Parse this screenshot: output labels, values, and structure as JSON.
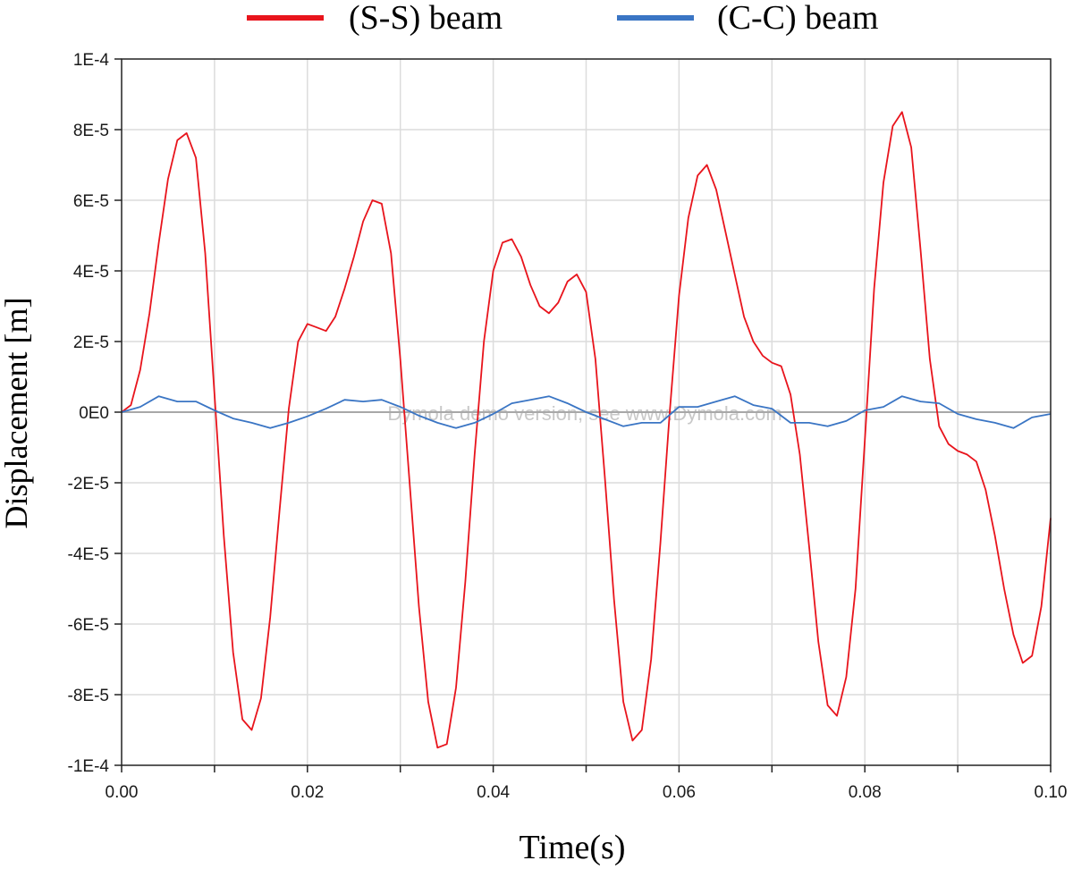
{
  "chart_data": {
    "type": "line",
    "xlabel": "Time(s)",
    "ylabel": "Displacement [m]",
    "xlim": [
      0,
      0.1
    ],
    "ylim": [
      -0.0001,
      0.0001
    ],
    "x_ticks": [
      0,
      0.01,
      0.02,
      0.03,
      0.04,
      0.05,
      0.06,
      0.07,
      0.08,
      0.09,
      0.1
    ],
    "x_tick_labels": [
      "0.00",
      "",
      "0.02",
      "",
      "0.04",
      "",
      "0.06",
      "",
      "0.08",
      "",
      "0.10"
    ],
    "y_ticks": [
      0.0001,
      8e-05,
      6e-05,
      4e-05,
      2e-05,
      0,
      -2e-05,
      -4e-05,
      -6e-05,
      -8e-05,
      -0.0001
    ],
    "y_tick_labels": [
      "1E-4",
      "8E-5",
      "6E-5",
      "4E-5",
      "2E-5",
      "0E0",
      "-2E-5",
      "-4E-5",
      "-6E-5",
      "-8E-5",
      "-1E-4"
    ],
    "grid": true,
    "legend_position": "top-center",
    "watermark": "Dymola demo version, see www.Dymola.com",
    "series": [
      {
        "name": "(S-S) beam",
        "color": "#e8141c",
        "x": [
          0,
          0.001,
          0.002,
          0.003,
          0.004,
          0.005,
          0.006,
          0.007,
          0.008,
          0.009,
          0.01,
          0.011,
          0.012,
          0.013,
          0.014,
          0.015,
          0.016,
          0.017,
          0.018,
          0.019,
          0.02,
          0.021,
          0.022,
          0.023,
          0.024,
          0.025,
          0.026,
          0.027,
          0.028,
          0.029,
          0.03,
          0.031,
          0.032,
          0.033,
          0.034,
          0.035,
          0.036,
          0.037,
          0.038,
          0.039,
          0.04,
          0.041,
          0.042,
          0.043,
          0.044,
          0.045,
          0.046,
          0.047,
          0.048,
          0.049,
          0.05,
          0.051,
          0.052,
          0.053,
          0.054,
          0.055,
          0.056,
          0.057,
          0.058,
          0.059,
          0.06,
          0.061,
          0.062,
          0.063,
          0.064,
          0.065,
          0.066,
          0.067,
          0.068,
          0.069,
          0.07,
          0.071,
          0.072,
          0.073,
          0.074,
          0.075,
          0.076,
          0.077,
          0.078,
          0.079,
          0.08,
          0.081,
          0.082,
          0.083,
          0.084,
          0.085,
          0.086,
          0.087,
          0.088,
          0.089,
          0.09,
          0.091,
          0.092,
          0.093,
          0.094,
          0.095,
          0.096,
          0.097,
          0.098,
          0.099,
          0.1
        ],
        "y": [
          0,
          2e-06,
          1.2e-05,
          2.8e-05,
          4.8e-05,
          6.6e-05,
          7.7e-05,
          7.9e-05,
          7.2e-05,
          4.5e-05,
          5e-06,
          -3.5e-05,
          -6.8e-05,
          -8.7e-05,
          -9e-05,
          -8.1e-05,
          -5.8e-05,
          -2.8e-05,
          1e-06,
          2e-05,
          2.5e-05,
          2.4e-05,
          2.3e-05,
          2.7e-05,
          3.5e-05,
          4.4e-05,
          5.4e-05,
          6e-05,
          5.9e-05,
          4.5e-05,
          1.5e-05,
          -2e-05,
          -5.5e-05,
          -8.2e-05,
          -9.5e-05,
          -9.4e-05,
          -7.8e-05,
          -4.8e-05,
          -1.2e-05,
          2e-05,
          4e-05,
          4.8e-05,
          4.9e-05,
          4.4e-05,
          3.6e-05,
          3e-05,
          2.8e-05,
          3.1e-05,
          3.7e-05,
          3.9e-05,
          3.4e-05,
          1.5e-05,
          -1.8e-05,
          -5.3e-05,
          -8.2e-05,
          -9.3e-05,
          -9e-05,
          -7e-05,
          -3.7e-05,
          0,
          3.3e-05,
          5.5e-05,
          6.7e-05,
          7e-05,
          6.3e-05,
          5.1e-05,
          3.9e-05,
          2.7e-05,
          2e-05,
          1.6e-05,
          1.4e-05,
          1.3e-05,
          5e-06,
          -1.2e-05,
          -3.8e-05,
          -6.5e-05,
          -8.3e-05,
          -8.6e-05,
          -7.5e-05,
          -5e-05,
          -8e-06,
          3.5e-05,
          6.5e-05,
          8.1e-05,
          8.5e-05,
          7.5e-05,
          4.6e-05,
          1.5e-05,
          -4e-06,
          -9e-06,
          -1.1e-05,
          -1.2e-05,
          -1.4e-05,
          -2.2e-05,
          -3.5e-05,
          -5e-05,
          -6.3e-05,
          -7.1e-05,
          -6.9e-05,
          -5.5e-05,
          -3e-05
        ]
      },
      {
        "name": "(C-C) beam",
        "color": "#3a75c4",
        "x": [
          0,
          0.002,
          0.004,
          0.006,
          0.008,
          0.01,
          0.012,
          0.014,
          0.016,
          0.018,
          0.02,
          0.022,
          0.024,
          0.026,
          0.028,
          0.03,
          0.032,
          0.034,
          0.036,
          0.038,
          0.04,
          0.042,
          0.044,
          0.046,
          0.048,
          0.05,
          0.052,
          0.054,
          0.056,
          0.058,
          0.06,
          0.062,
          0.064,
          0.066,
          0.068,
          0.07,
          0.072,
          0.074,
          0.076,
          0.078,
          0.08,
          0.082,
          0.084,
          0.086,
          0.088,
          0.09,
          0.092,
          0.094,
          0.096,
          0.098,
          0.1
        ],
        "y": [
          0,
          1.5e-06,
          4.5e-06,
          3e-06,
          3e-06,
          5e-07,
          -1.8e-06,
          -3e-06,
          -4.5e-06,
          -3e-06,
          -1.2e-06,
          1e-06,
          3.5e-06,
          3e-06,
          3.5e-06,
          1.5e-06,
          -1e-06,
          -3e-06,
          -4.5e-06,
          -3e-06,
          -5e-07,
          2.5e-06,
          3.5e-06,
          4.5e-06,
          2.5e-06,
          0,
          -2e-06,
          -4e-06,
          -3e-06,
          -3e-06,
          1.5e-06,
          1.5e-06,
          3e-06,
          4.5e-06,
          2e-06,
          1e-06,
          -3e-06,
          -3e-06,
          -4e-06,
          -2.5e-06,
          5e-07,
          1.5e-06,
          4.5e-06,
          3e-06,
          2.5e-06,
          -5e-07,
          -2e-06,
          -3e-06,
          -4.5e-06,
          -1.5e-06,
          -5e-07
        ]
      }
    ]
  }
}
